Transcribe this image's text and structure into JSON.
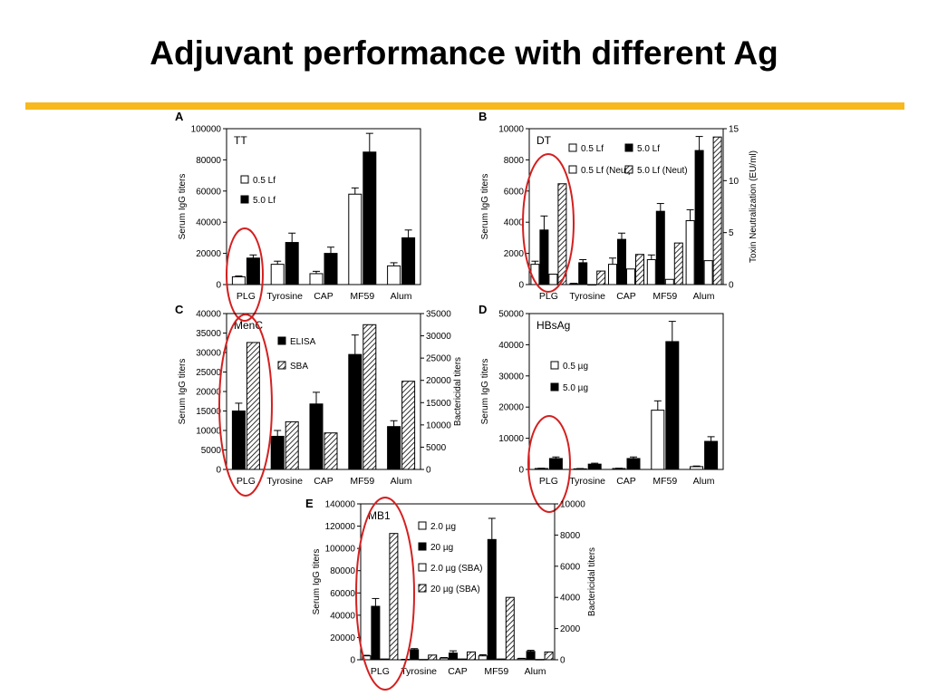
{
  "slide": {
    "title": "Adjuvant performance with different Ag",
    "accent_color": "#f7b91e",
    "highlight_color": "#d42020"
  },
  "chart_data": [
    {
      "panel": "A",
      "type": "bar",
      "title": "TT",
      "ylabel": "Serum IgG titers",
      "ylim": [
        0,
        100000
      ],
      "yticks": [
        0,
        20000,
        40000,
        60000,
        80000,
        100000
      ],
      "categories": [
        "PLG",
        "Tyrosine",
        "CAP",
        "MF59",
        "Alum"
      ],
      "highlight_category": "PLG",
      "legend_position": "left",
      "series": [
        {
          "name": "0.5 Lf",
          "style": "white",
          "axis": "left",
          "values": [
            5000,
            13000,
            7000,
            58000,
            12000
          ],
          "errors": [
            500,
            2000,
            1500,
            4000,
            2000
          ]
        },
        {
          "name": "5.0 Lf",
          "style": "black",
          "axis": "left",
          "values": [
            17000,
            27000,
            20000,
            85000,
            30000
          ],
          "errors": [
            2000,
            6000,
            4000,
            12000,
            5000
          ]
        }
      ]
    },
    {
      "panel": "B",
      "type": "bar",
      "title": "DT",
      "ylabel": "Serum IgG titers",
      "y2label": "Toxin Neutralization (EU/ml)",
      "ylim": [
        0,
        10000
      ],
      "yticks": [
        0,
        2000,
        4000,
        6000,
        8000,
        10000
      ],
      "y2lim": [
        0,
        15
      ],
      "y2ticks": [
        0,
        5,
        10,
        15
      ],
      "categories": [
        "PLG",
        "Tyrosine",
        "CAP",
        "MF59",
        "Alum"
      ],
      "highlight_category": "PLG",
      "legend_position": "top",
      "series": [
        {
          "name": "0.5 Lf",
          "style": "white",
          "axis": "left",
          "values": [
            1300,
            50,
            1300,
            1600,
            4100
          ],
          "errors": [
            200,
            30,
            400,
            300,
            700
          ]
        },
        {
          "name": "5.0 Lf",
          "style": "black",
          "axis": "left",
          "values": [
            3500,
            1400,
            2900,
            4700,
            8600
          ],
          "errors": [
            900,
            200,
            400,
            500,
            900
          ]
        },
        {
          "name": "0.5 Lf (Neut)",
          "style": "white",
          "axis": "right",
          "values": [
            1,
            0,
            1.5,
            0.5,
            2.3
          ],
          "errors": [
            0,
            0,
            0,
            0,
            0
          ]
        },
        {
          "name": "5.0 Lf (Neut)",
          "style": "hatch",
          "axis": "right",
          "values": [
            9.7,
            1.3,
            2.9,
            4,
            14.2
          ],
          "errors": [
            0,
            0,
            0,
            0,
            0
          ]
        }
      ]
    },
    {
      "panel": "C",
      "type": "bar",
      "title": "MenC",
      "ylabel": "Serum IgG titers",
      "y2label": "Bactericidal titers",
      "ylim": [
        0,
        40000
      ],
      "yticks": [
        0,
        5000,
        10000,
        15000,
        20000,
        25000,
        30000,
        35000,
        40000
      ],
      "y2lim": [
        0,
        35000
      ],
      "y2ticks": [
        0,
        5000,
        10000,
        15000,
        20000,
        25000,
        30000,
        35000
      ],
      "categories": [
        "PLG",
        "Tyrosine",
        "CAP",
        "MF59",
        "Alum"
      ],
      "highlight_category": "PLG",
      "legend_position": "left",
      "series": [
        {
          "name": "ELISA",
          "style": "black",
          "axis": "left",
          "values": [
            15000,
            8500,
            16800,
            29500,
            11000
          ],
          "errors": [
            2000,
            1500,
            3000,
            5000,
            1500
          ]
        },
        {
          "name": "SBA",
          "style": "hatch",
          "axis": "right",
          "values": [
            28500,
            10700,
            8200,
            32500,
            19800
          ],
          "errors": [
            0,
            0,
            0,
            0,
            0
          ]
        }
      ]
    },
    {
      "panel": "D",
      "type": "bar",
      "title": "HBsAg",
      "ylabel": "Serum IgG titers",
      "ylim": [
        0,
        50000
      ],
      "yticks": [
        0,
        10000,
        20000,
        30000,
        40000,
        50000
      ],
      "categories": [
        "PLG",
        "Tyrosine",
        "CAP",
        "MF59",
        "Alum"
      ],
      "highlight_category": "PLG",
      "legend_position": "left",
      "series": [
        {
          "name": "0.5 µg",
          "style": "white",
          "axis": "left",
          "values": [
            300,
            200,
            300,
            19000,
            900
          ],
          "errors": [
            100,
            100,
            100,
            3000,
            200
          ]
        },
        {
          "name": "5.0 µg",
          "style": "black",
          "axis": "left",
          "values": [
            3500,
            1700,
            3500,
            41000,
            9000
          ],
          "errors": [
            500,
            300,
            500,
            6500,
            1500
          ]
        }
      ]
    },
    {
      "panel": "E",
      "type": "bar",
      "title": "MB1",
      "ylabel": "Serum IgG titers",
      "y2label": "Bactericidal titers",
      "ylim": [
        0,
        140000
      ],
      "yticks": [
        0,
        20000,
        40000,
        60000,
        80000,
        100000,
        120000,
        140000
      ],
      "y2lim": [
        0,
        10000
      ],
      "y2ticks": [
        0,
        2000,
        4000,
        6000,
        8000,
        10000
      ],
      "categories": [
        "PLG",
        "Tyrosine",
        "CAP",
        "MF59",
        "Alum"
      ],
      "highlight_category": "PLG",
      "legend_position": "top",
      "series": [
        {
          "name": "2.0 µg",
          "style": "white",
          "axis": "left",
          "values": [
            3500,
            300,
            1500,
            3500,
            1000
          ],
          "errors": [
            500,
            100,
            500,
            1000,
            300
          ]
        },
        {
          "name": "20 µg",
          "style": "black",
          "axis": "left",
          "values": [
            48000,
            9000,
            6000,
            108000,
            7500
          ],
          "errors": [
            7000,
            1000,
            2000,
            19000,
            1000
          ]
        },
        {
          "name": "2.0 µg (SBA)",
          "style": "white",
          "axis": "right",
          "values": [
            50,
            20,
            50,
            50,
            20
          ],
          "errors": [
            0,
            0,
            0,
            0,
            0
          ]
        },
        {
          "name": "20 µg (SBA)",
          "style": "hatch",
          "axis": "right",
          "values": [
            8100,
            300,
            500,
            4000,
            500
          ],
          "errors": [
            0,
            0,
            0,
            0,
            0
          ]
        }
      ]
    }
  ]
}
